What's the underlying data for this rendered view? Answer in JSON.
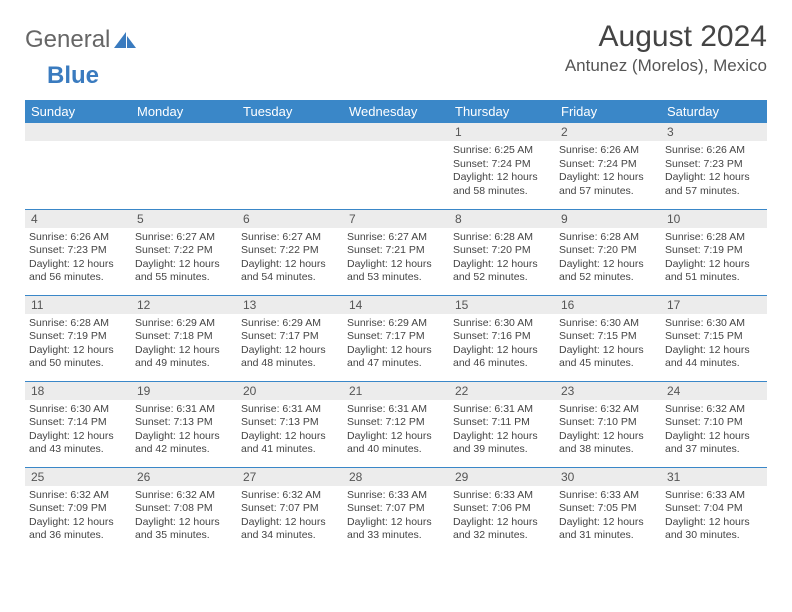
{
  "logo": {
    "text1": "General",
    "text2": "Blue"
  },
  "title": "August 2024",
  "location": "Antunez (Morelos), Mexico",
  "styles": {
    "header_bg": "#3a87c8",
    "header_fg": "#ffffff",
    "daynum_bg": "#ececec",
    "border_color": "#3a87c8",
    "page_bg": "#ffffff",
    "title_fontsize": 30,
    "location_fontsize": 17,
    "dayhead_fontsize": 13,
    "daynum_fontsize": 12,
    "body_fontsize": 10.5
  },
  "columns": [
    "Sunday",
    "Monday",
    "Tuesday",
    "Wednesday",
    "Thursday",
    "Friday",
    "Saturday"
  ],
  "weeks": [
    [
      null,
      null,
      null,
      null,
      {
        "n": "1",
        "sunrise": "6:25 AM",
        "sunset": "7:24 PM",
        "daylight": "12 hours and 58 minutes."
      },
      {
        "n": "2",
        "sunrise": "6:26 AM",
        "sunset": "7:24 PM",
        "daylight": "12 hours and 57 minutes."
      },
      {
        "n": "3",
        "sunrise": "6:26 AM",
        "sunset": "7:23 PM",
        "daylight": "12 hours and 57 minutes."
      }
    ],
    [
      {
        "n": "4",
        "sunrise": "6:26 AM",
        "sunset": "7:23 PM",
        "daylight": "12 hours and 56 minutes."
      },
      {
        "n": "5",
        "sunrise": "6:27 AM",
        "sunset": "7:22 PM",
        "daylight": "12 hours and 55 minutes."
      },
      {
        "n": "6",
        "sunrise": "6:27 AM",
        "sunset": "7:22 PM",
        "daylight": "12 hours and 54 minutes."
      },
      {
        "n": "7",
        "sunrise": "6:27 AM",
        "sunset": "7:21 PM",
        "daylight": "12 hours and 53 minutes."
      },
      {
        "n": "8",
        "sunrise": "6:28 AM",
        "sunset": "7:20 PM",
        "daylight": "12 hours and 52 minutes."
      },
      {
        "n": "9",
        "sunrise": "6:28 AM",
        "sunset": "7:20 PM",
        "daylight": "12 hours and 52 minutes."
      },
      {
        "n": "10",
        "sunrise": "6:28 AM",
        "sunset": "7:19 PM",
        "daylight": "12 hours and 51 minutes."
      }
    ],
    [
      {
        "n": "11",
        "sunrise": "6:28 AM",
        "sunset": "7:19 PM",
        "daylight": "12 hours and 50 minutes."
      },
      {
        "n": "12",
        "sunrise": "6:29 AM",
        "sunset": "7:18 PM",
        "daylight": "12 hours and 49 minutes."
      },
      {
        "n": "13",
        "sunrise": "6:29 AM",
        "sunset": "7:17 PM",
        "daylight": "12 hours and 48 minutes."
      },
      {
        "n": "14",
        "sunrise": "6:29 AM",
        "sunset": "7:17 PM",
        "daylight": "12 hours and 47 minutes."
      },
      {
        "n": "15",
        "sunrise": "6:30 AM",
        "sunset": "7:16 PM",
        "daylight": "12 hours and 46 minutes."
      },
      {
        "n": "16",
        "sunrise": "6:30 AM",
        "sunset": "7:15 PM",
        "daylight": "12 hours and 45 minutes."
      },
      {
        "n": "17",
        "sunrise": "6:30 AM",
        "sunset": "7:15 PM",
        "daylight": "12 hours and 44 minutes."
      }
    ],
    [
      {
        "n": "18",
        "sunrise": "6:30 AM",
        "sunset": "7:14 PM",
        "daylight": "12 hours and 43 minutes."
      },
      {
        "n": "19",
        "sunrise": "6:31 AM",
        "sunset": "7:13 PM",
        "daylight": "12 hours and 42 minutes."
      },
      {
        "n": "20",
        "sunrise": "6:31 AM",
        "sunset": "7:13 PM",
        "daylight": "12 hours and 41 minutes."
      },
      {
        "n": "21",
        "sunrise": "6:31 AM",
        "sunset": "7:12 PM",
        "daylight": "12 hours and 40 minutes."
      },
      {
        "n": "22",
        "sunrise": "6:31 AM",
        "sunset": "7:11 PM",
        "daylight": "12 hours and 39 minutes."
      },
      {
        "n": "23",
        "sunrise": "6:32 AM",
        "sunset": "7:10 PM",
        "daylight": "12 hours and 38 minutes."
      },
      {
        "n": "24",
        "sunrise": "6:32 AM",
        "sunset": "7:10 PM",
        "daylight": "12 hours and 37 minutes."
      }
    ],
    [
      {
        "n": "25",
        "sunrise": "6:32 AM",
        "sunset": "7:09 PM",
        "daylight": "12 hours and 36 minutes."
      },
      {
        "n": "26",
        "sunrise": "6:32 AM",
        "sunset": "7:08 PM",
        "daylight": "12 hours and 35 minutes."
      },
      {
        "n": "27",
        "sunrise": "6:32 AM",
        "sunset": "7:07 PM",
        "daylight": "12 hours and 34 minutes."
      },
      {
        "n": "28",
        "sunrise": "6:33 AM",
        "sunset": "7:07 PM",
        "daylight": "12 hours and 33 minutes."
      },
      {
        "n": "29",
        "sunrise": "6:33 AM",
        "sunset": "7:06 PM",
        "daylight": "12 hours and 32 minutes."
      },
      {
        "n": "30",
        "sunrise": "6:33 AM",
        "sunset": "7:05 PM",
        "daylight": "12 hours and 31 minutes."
      },
      {
        "n": "31",
        "sunrise": "6:33 AM",
        "sunset": "7:04 PM",
        "daylight": "12 hours and 30 minutes."
      }
    ]
  ],
  "labels": {
    "sunrise": "Sunrise:",
    "sunset": "Sunset:",
    "daylight": "Daylight:"
  }
}
